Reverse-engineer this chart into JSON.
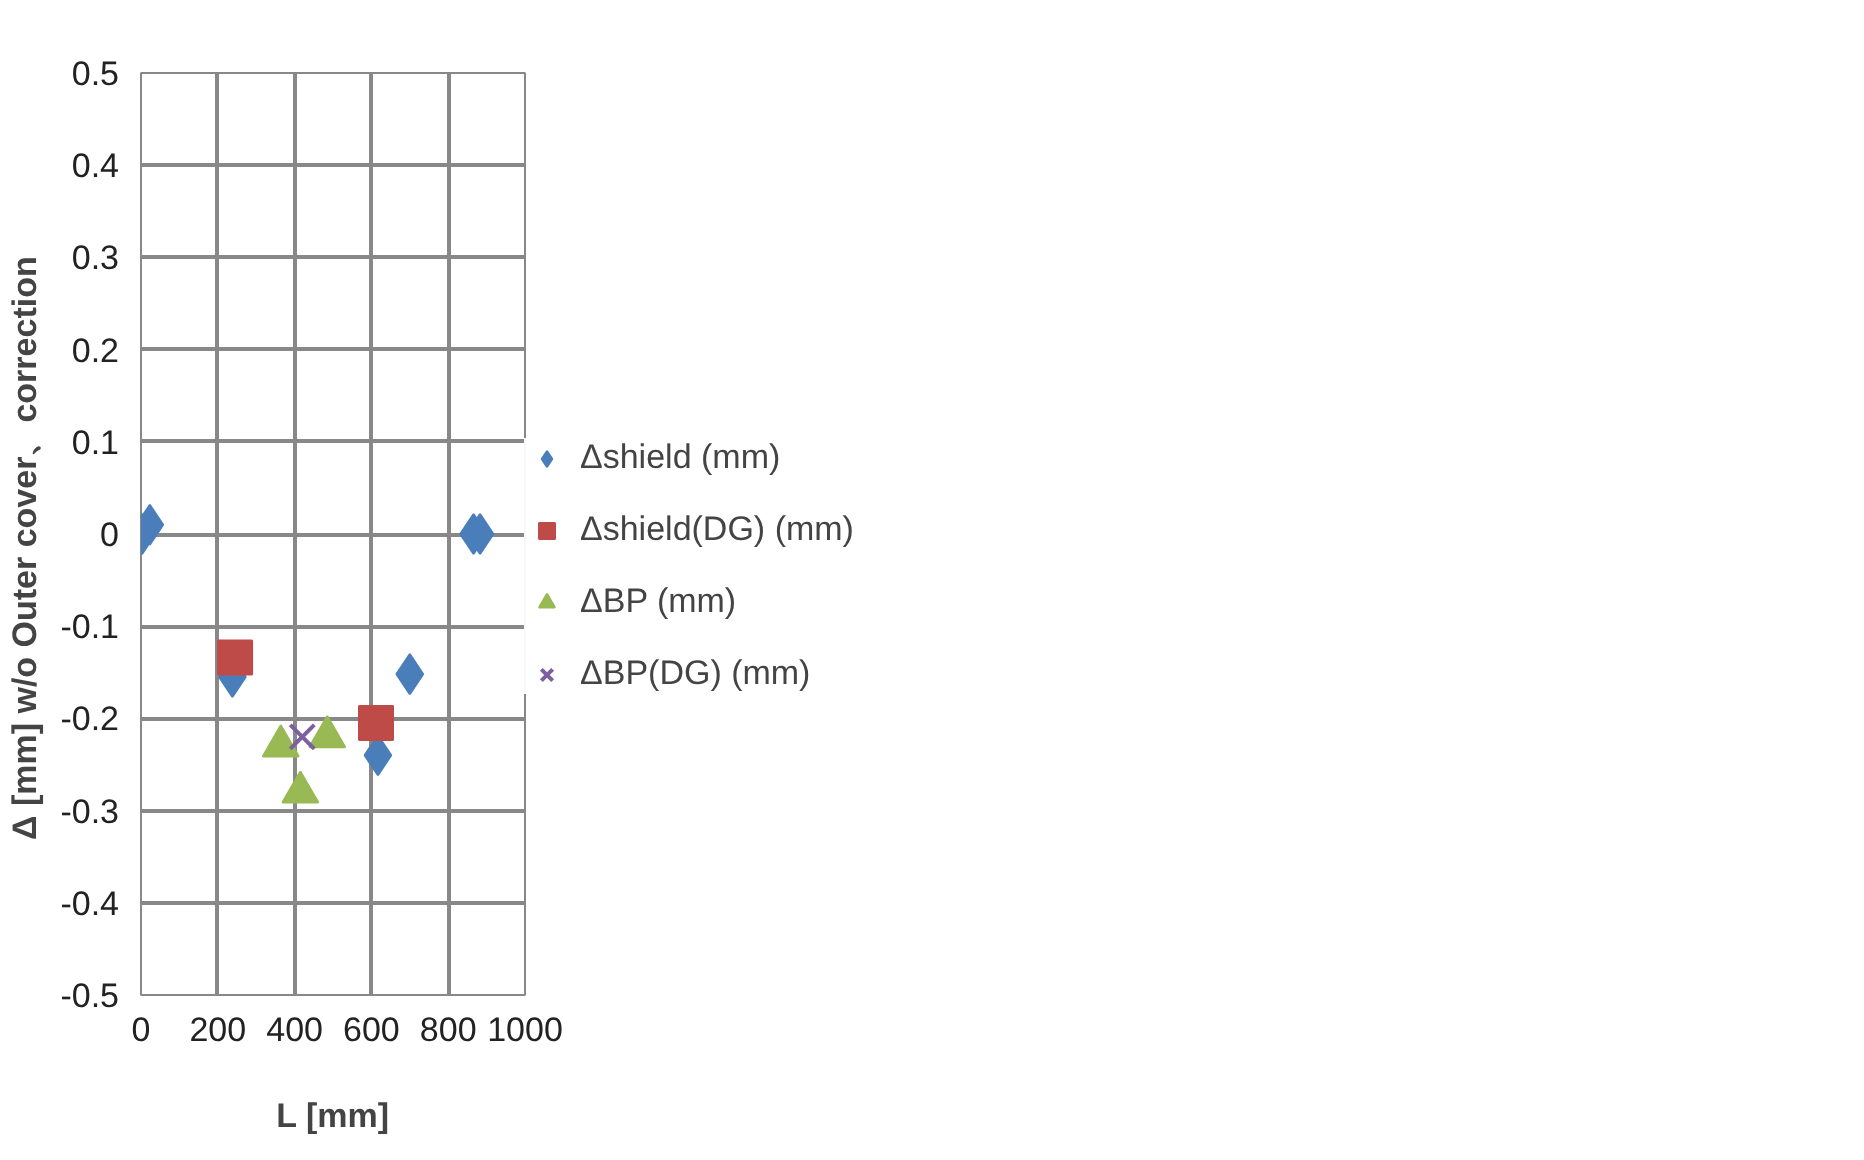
{
  "chart_data": {
    "type": "scatter",
    "xlabel": "L [mm]",
    "ylabel": "Δ  [mm]   w/o Outer cover、correction",
    "xlim": [
      0,
      1000
    ],
    "xticks": [
      0,
      200,
      400,
      600,
      800,
      1000
    ],
    "ylim": [
      -0.5,
      0.5
    ],
    "yticks": [
      -0.5,
      -0.4,
      -0.3,
      -0.2,
      -0.1,
      0,
      0.1,
      0.2,
      0.3,
      0.4,
      0.5
    ],
    "grid": true,
    "legend": "right",
    "series": [
      {
        "name": "Δshield (mm)",
        "color": "#4a7ebb",
        "marker": "diamond",
        "x": [
          3,
          23,
          238,
          617,
          700,
          866,
          883
        ],
        "values": [
          0,
          0.01,
          -0.155,
          -0.24,
          -0.152,
          0,
          0
        ]
      },
      {
        "name": "Δshield(DG) (mm)",
        "color": "#be4b48",
        "marker": "square",
        "x": [
          245,
          612
        ],
        "values": [
          -0.134,
          -0.205
        ]
      },
      {
        "name": "ΔBP (mm)",
        "color": "#98b954",
        "marker": "triangle",
        "x": [
          364,
          415,
          485
        ],
        "values": [
          -0.23,
          -0.28,
          -0.22
        ]
      },
      {
        "name": "ΔBP(DG) (mm)",
        "color": "#7d60a0",
        "marker": "cross",
        "x": [
          420
        ],
        "values": [
          -0.22
        ]
      }
    ]
  }
}
